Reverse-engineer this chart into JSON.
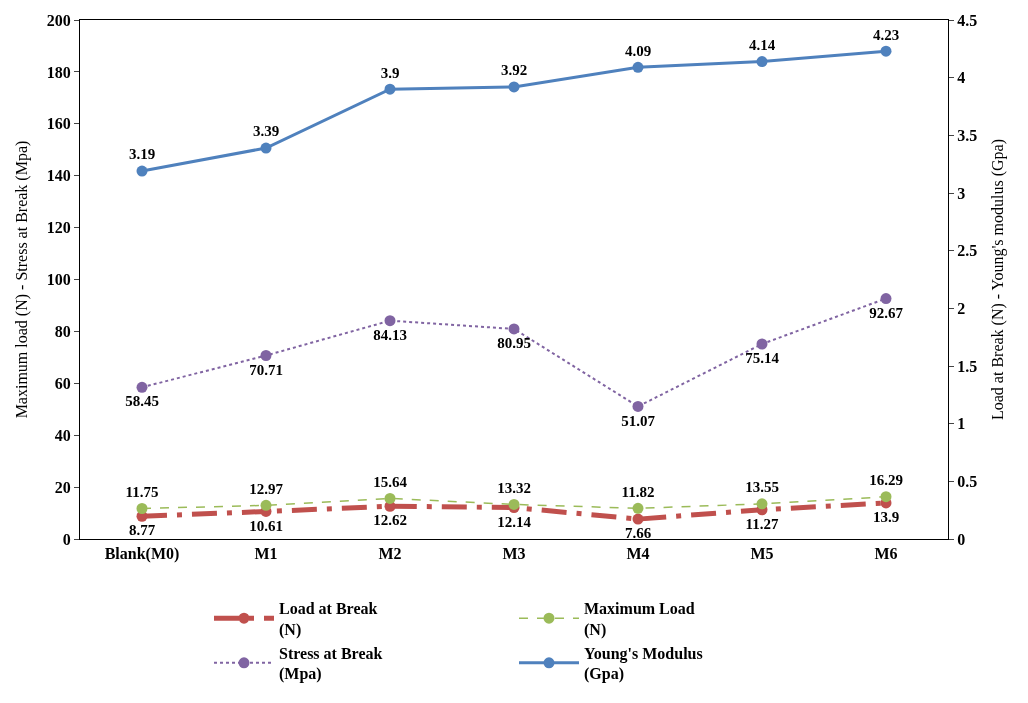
{
  "chart_data": {
    "type": "line",
    "ylabel": "Maximum load (N) - Stress at Break (Mpa)",
    "y2label": "Load at Break (N) - Young's modulus (Gpa)",
    "categories": [
      "Blank(M0)",
      "M1",
      "M2",
      "M3",
      "M4",
      "M5",
      "M6"
    ],
    "ylim": [
      0,
      200
    ],
    "yticks": [
      0,
      20,
      40,
      60,
      80,
      100,
      120,
      140,
      160,
      180,
      200
    ],
    "y2lim": [
      0,
      4.5
    ],
    "y2ticks": [
      0,
      0.5,
      1,
      1.5,
      2,
      2.5,
      3,
      3.5,
      4,
      4.5
    ],
    "legend": "bottom",
    "marker": "circle",
    "data_labels": true,
    "series": [
      {
        "name": "Load at Break (N)",
        "color": "#c0504d",
        "line_style": "dashdot",
        "values": [
          8.77,
          10.61,
          12.62,
          12.14,
          7.66,
          11.27,
          13.9
        ]
      },
      {
        "name": "Maximum Load (N)",
        "color": "#9bbb59",
        "line_style": "dashed",
        "values": [
          11.75,
          12.97,
          15.64,
          13.32,
          11.82,
          13.55,
          16.29
        ]
      },
      {
        "name": "Stress at Break (Mpa)",
        "color": "#8064a2",
        "line_style": "dotted",
        "values": [
          58.45,
          70.71,
          84.13,
          80.95,
          51.07,
          75.14,
          92.67
        ]
      },
      {
        "name": "Young's Modulus (Gpa)",
        "color": "#4f81bd",
        "line_style": "solid",
        "axis": "y2",
        "values": [
          3.19,
          3.39,
          3.9,
          3.92,
          4.09,
          4.14,
          4.23
        ]
      }
    ]
  }
}
